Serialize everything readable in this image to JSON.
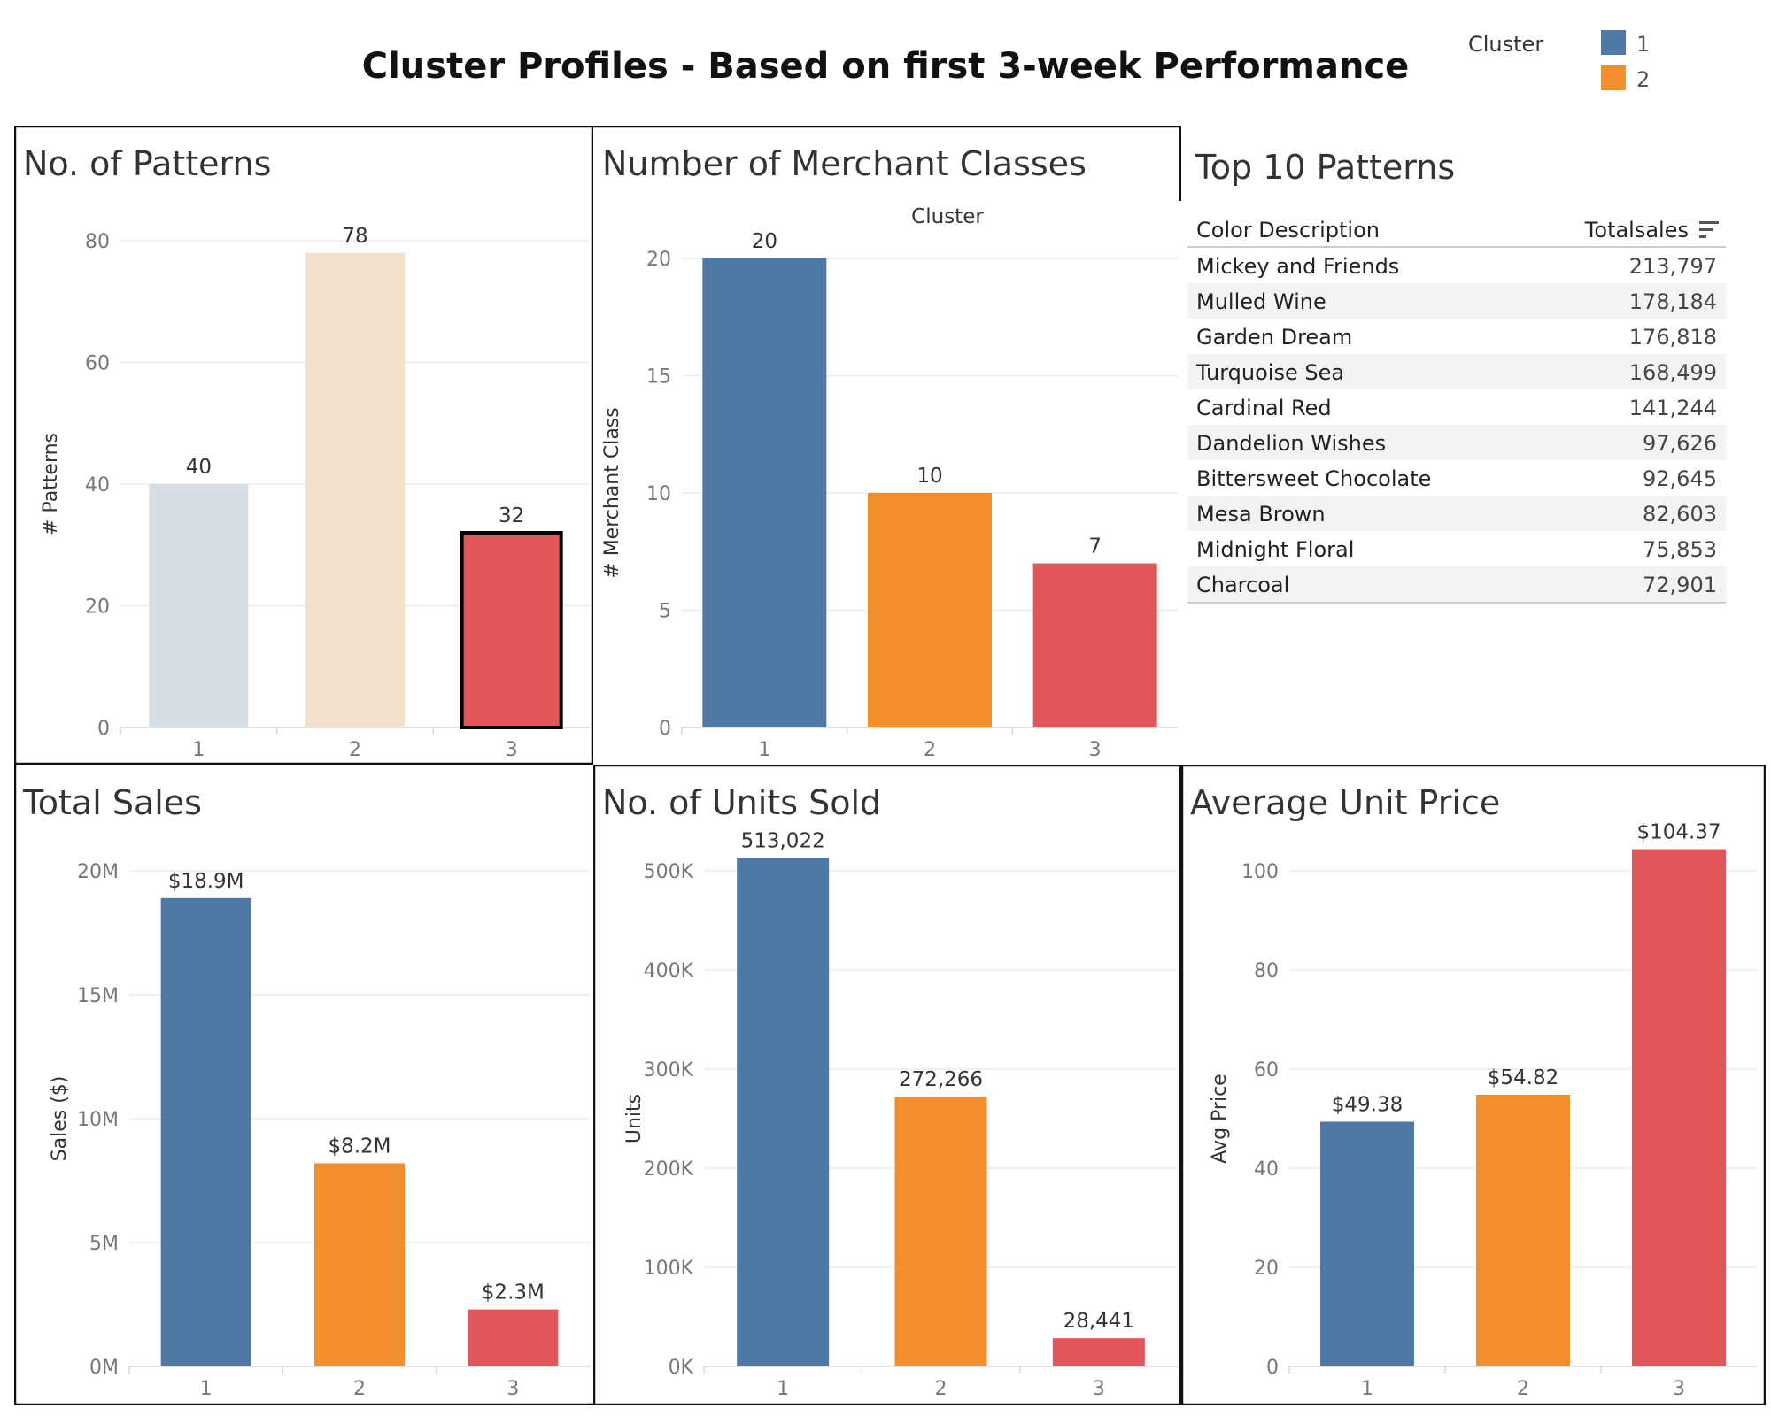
{
  "title": "Cluster Profiles - Based on first 3-week Performance",
  "legend": {
    "title": "Cluster",
    "items": [
      {
        "label": "1",
        "color": "#4e79a7"
      },
      {
        "label": "2",
        "color": "#f28e2b"
      }
    ]
  },
  "table": {
    "title": "Top 10 Patterns",
    "columns": [
      "Color Description",
      "Totalsales"
    ],
    "rows": [
      [
        "Mickey and Friends",
        "213,797"
      ],
      [
        "Mulled Wine",
        "178,184"
      ],
      [
        "Garden Dream",
        "176,818"
      ],
      [
        "Turquoise Sea",
        "168,499"
      ],
      [
        "Cardinal Red",
        "141,244"
      ],
      [
        "Dandelion Wishes",
        "97,626"
      ],
      [
        "Bittersweet Chocolate",
        "92,645"
      ],
      [
        "Mesa Brown",
        "82,603"
      ],
      [
        "Midnight Floral",
        "75,853"
      ],
      [
        "Charcoal",
        "72,901"
      ]
    ]
  },
  "chart_data": [
    {
      "id": "patterns",
      "type": "bar",
      "title": "No. of Patterns",
      "ylabel": "# Patterns",
      "categories": [
        "1",
        "2",
        "3"
      ],
      "values": [
        40,
        78,
        32
      ],
      "labels": [
        "40",
        "78",
        "32"
      ],
      "yticks": [
        0,
        20,
        40,
        60,
        80
      ],
      "ytick_labels": [
        "0",
        "20",
        "40",
        "60",
        "80"
      ],
      "ylim": [
        0,
        80
      ],
      "colors": [
        "#d5dde5",
        "#f3e1cd",
        "#e15759"
      ],
      "label_colors": [
        "#cccccc",
        "#cccccc",
        "#333333"
      ],
      "highlight_index": 2
    },
    {
      "id": "merchant",
      "type": "bar",
      "title": "Number of Merchant Classes",
      "header": "Cluster",
      "ylabel": "# Merchant Class",
      "categories": [
        "1",
        "2",
        "3"
      ],
      "values": [
        20,
        10,
        7
      ],
      "labels": [
        "20",
        "10",
        "7"
      ],
      "yticks": [
        0,
        5,
        10,
        15,
        20
      ],
      "ytick_labels": [
        "0",
        "5",
        "10",
        "15",
        "20"
      ],
      "ylim": [
        0,
        20
      ],
      "colors": [
        "#4e79a7",
        "#f28e2b",
        "#e15759"
      ]
    },
    {
      "id": "sales",
      "type": "bar",
      "title": "Total Sales",
      "ylabel": "Sales ($)",
      "categories": [
        "1",
        "2",
        "3"
      ],
      "values": [
        18.9,
        8.2,
        2.3
      ],
      "labels": [
        "$18.9M",
        "$8.2M",
        "$2.3M"
      ],
      "yticks": [
        0,
        5,
        10,
        15,
        20
      ],
      "ytick_labels": [
        "0M",
        "5M",
        "10M",
        "15M",
        "20M"
      ],
      "ylim": [
        0,
        20
      ],
      "colors": [
        "#4e79a7",
        "#f28e2b",
        "#e15759"
      ]
    },
    {
      "id": "units",
      "type": "bar",
      "title": "No. of Units Sold",
      "ylabel": "Units",
      "categories": [
        "1",
        "2",
        "3"
      ],
      "values": [
        513022,
        272266,
        28441
      ],
      "labels": [
        "513,022",
        "272,266",
        "28,441"
      ],
      "yticks": [
        0,
        100000,
        200000,
        300000,
        400000,
        500000
      ],
      "ytick_labels": [
        "0K",
        "100K",
        "200K",
        "300K",
        "400K",
        "500K"
      ],
      "ylim": [
        0,
        500000
      ],
      "colors": [
        "#4e79a7",
        "#f28e2b",
        "#e15759"
      ]
    },
    {
      "id": "price",
      "type": "bar",
      "title": "Average Unit Price",
      "ylabel": "Avg Price",
      "categories": [
        "1",
        "2",
        "3"
      ],
      "values": [
        49.38,
        54.82,
        104.37
      ],
      "labels": [
        "$49.38",
        "$54.82",
        "$104.37"
      ],
      "yticks": [
        0,
        20,
        40,
        60,
        80,
        100
      ],
      "ytick_labels": [
        "0",
        "20",
        "40",
        "60",
        "80",
        "100"
      ],
      "ylim": [
        0,
        100
      ],
      "colors": [
        "#4e79a7",
        "#f28e2b",
        "#e15759"
      ]
    }
  ]
}
